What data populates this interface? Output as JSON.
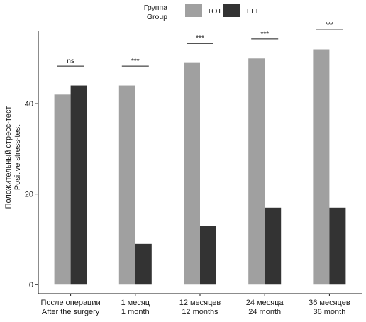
{
  "chart_data": {
    "type": "bar",
    "ylabel_lines": [
      "Положительный стресс-тест",
      "Positive stress-test"
    ],
    "xlabel": "",
    "legend": {
      "title_lines": [
        "Группа",
        "Group"
      ],
      "position": "top",
      "colors": {
        "TOT": "#a0a0a0",
        "TTT": "#333333"
      }
    },
    "categories": [
      [
        "После операции",
        "After the surgery"
      ],
      [
        "1 месяц",
        "1 month"
      ],
      [
        "12 месяцев",
        "12 months"
      ],
      [
        "24 месяца",
        "24 month"
      ],
      [
        "36 месяцев",
        "36 month"
      ]
    ],
    "series": [
      {
        "name": "TOT",
        "values": [
          42,
          44,
          49,
          50,
          52
        ]
      },
      {
        "name": "TTT",
        "values": [
          44,
          9,
          13,
          17,
          17
        ]
      }
    ],
    "significance": [
      "ns",
      "***",
      "***",
      "***",
      "***"
    ],
    "ylim": [
      -2,
      56
    ],
    "yticks": [
      0,
      20,
      40
    ],
    "grid": false
  }
}
